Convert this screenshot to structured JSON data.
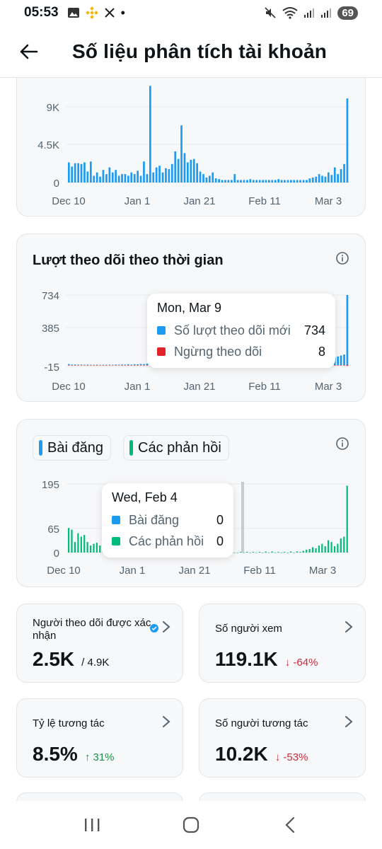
{
  "status_bar": {
    "time": "05:53",
    "battery": "69"
  },
  "header": {
    "title": "Số liệu phân tích tài khoản"
  },
  "impressions_chart": {
    "y_ticks": [
      "9K",
      "4.5K",
      "0"
    ],
    "x_ticks": [
      "Dec 10",
      "Jan 1",
      "Jan 21",
      "Feb 11",
      "Mar 3"
    ]
  },
  "followers_chart": {
    "title": "Lượt theo dõi theo thời gian",
    "y_ticks": [
      "734",
      "385",
      "-15"
    ],
    "x_ticks": [
      "Dec 10",
      "Jan 1",
      "Jan 21",
      "Feb 11",
      "Mar 3"
    ],
    "tooltip": {
      "date": "Mon, Mar 9",
      "rows": [
        {
          "label": "Số lượt theo dõi mới",
          "value": "734",
          "color": "#1d9bf0"
        },
        {
          "label": "Ngừng theo dõi",
          "value": "8",
          "color": "#e0242a"
        }
      ]
    }
  },
  "posts_chart": {
    "legend": [
      {
        "label": "Bài đăng",
        "color": "#1d9bf0"
      },
      {
        "label": "Các phản hồi",
        "color": "#00ba7c"
      }
    ],
    "y_ticks": [
      "195",
      "65",
      "0"
    ],
    "x_ticks": [
      "Dec 10",
      "Jan 1",
      "Jan 21",
      "Feb 11",
      "Mar 3"
    ],
    "tooltip": {
      "date": "Wed, Feb 4",
      "rows": [
        {
          "label": "Bài đăng",
          "value": "0",
          "color": "#1d9bf0"
        },
        {
          "label": "Các phản hồi",
          "value": "0",
          "color": "#00ba7c"
        }
      ]
    }
  },
  "stats": {
    "verified_followers": {
      "label": "Người theo dõi được xác nhận",
      "value": "2.5K",
      "sub": "/ 4.9K"
    },
    "viewers": {
      "label": "Số người xem",
      "value": "119.1K",
      "change": "↓ -64%"
    },
    "engagement_rate": {
      "label": "Tỷ lệ tương tác",
      "value": "8.5%",
      "change": "↑ 31%"
    },
    "engaged_users": {
      "label": "Số người tương tác",
      "value": "10.2K",
      "change": "↓ -53%"
    }
  },
  "chart_data": [
    {
      "type": "bar",
      "title": "",
      "x_ticks": [
        "Dec 10",
        "Jan 1",
        "Jan 21",
        "Feb 11",
        "Mar 3"
      ],
      "ylim": [
        0,
        11000
      ],
      "y_ticks": [
        0,
        4500,
        9000
      ],
      "values": [
        2400,
        1900,
        2300,
        2300,
        2200,
        2400,
        1300,
        2500,
        800,
        1200,
        700,
        1500,
        1000,
        1800,
        1200,
        1500,
        800,
        1000,
        1000,
        800,
        1200,
        1000,
        1400,
        800,
        2500,
        1000,
        11500,
        1200,
        1800,
        2000,
        1200,
        1700,
        1600,
        2200,
        3700,
        2800,
        6800,
        3500,
        2400,
        2700,
        2800,
        2300,
        1300,
        1000,
        600,
        800,
        1200,
        500,
        400,
        300,
        300,
        300,
        300,
        1000,
        300,
        300,
        300,
        300,
        400,
        300,
        300,
        300,
        300,
        300,
        300,
        300,
        300,
        400,
        300,
        300,
        300,
        300,
        300,
        300,
        300,
        300,
        300,
        500,
        600,
        700,
        1000,
        800,
        700,
        1200,
        900,
        1800,
        1000,
        1600,
        2200,
        10000
      ]
    },
    {
      "type": "bar",
      "title": "Lượt theo dõi theo thời gian",
      "x_ticks": [
        "Dec 10",
        "Jan 1",
        "Jan 21",
        "Feb 11",
        "Mar 3"
      ],
      "ylim": [
        -15,
        734
      ],
      "y_ticks": [
        -15,
        385,
        734
      ],
      "series": [
        {
          "name": "Số lượt theo dõi mới",
          "values": [
            10,
            5,
            6,
            4,
            5,
            3,
            4,
            3,
            3,
            4,
            2,
            3,
            3,
            4,
            3,
            5,
            4,
            6,
            5,
            8,
            5,
            9,
            8,
            12,
            10,
            14,
            9,
            12,
            15,
            10,
            12,
            18,
            15,
            22,
            18,
            30,
            20,
            25,
            15,
            18,
            12,
            10,
            8,
            6,
            5,
            6,
            4,
            5,
            3,
            4,
            3,
            3,
            4,
            3,
            3,
            3,
            3,
            4,
            3,
            3,
            3,
            4,
            3,
            3,
            3,
            3,
            4,
            3,
            3,
            3,
            4,
            4,
            5,
            6,
            8,
            10,
            12,
            15,
            20,
            28,
            35,
            45,
            55,
            60,
            70,
            80,
            90,
            100,
            110,
            734
          ]
        },
        {
          "name": "Ngừng theo dõi",
          "values": [
            2,
            1,
            1,
            1,
            1,
            1,
            1,
            1,
            1,
            1,
            1,
            1,
            1,
            1,
            1,
            1,
            1,
            1,
            1,
            1,
            1,
            1,
            1,
            1,
            1,
            1,
            1,
            1,
            1,
            1,
            1,
            1,
            1,
            1,
            1,
            1,
            1,
            1,
            1,
            1,
            1,
            1,
            1,
            1,
            1,
            1,
            1,
            1,
            1,
            1,
            1,
            1,
            1,
            1,
            1,
            1,
            1,
            1,
            1,
            1,
            1,
            1,
            1,
            1,
            1,
            1,
            1,
            1,
            1,
            1,
            1,
            1,
            1,
            1,
            1,
            1,
            1,
            1,
            1,
            1,
            1,
            1,
            2,
            2,
            3,
            3,
            4,
            4,
            5,
            8
          ]
        }
      ]
    },
    {
      "type": "bar",
      "title": "",
      "x_ticks": [
        "Dec 10",
        "Jan 1",
        "Jan 21",
        "Feb 11",
        "Mar 3"
      ],
      "ylim": [
        0,
        195
      ],
      "y_ticks": [
        0,
        65,
        195
      ],
      "series": [
        {
          "name": "Bài đăng",
          "values": [
            0,
            0,
            0,
            0,
            0,
            0,
            0,
            0,
            0,
            0,
            0,
            0,
            0,
            0,
            0,
            0,
            0,
            0,
            0,
            0,
            0,
            0,
            0,
            0,
            0,
            0,
            0,
            0,
            0,
            0,
            0,
            0,
            0,
            0,
            0,
            0,
            0,
            0,
            0,
            0,
            0,
            0,
            0,
            0,
            0,
            0,
            0,
            0,
            0,
            0,
            0,
            0,
            0,
            0,
            0,
            0,
            0,
            0,
            0,
            0,
            0,
            0,
            0,
            0,
            0,
            0,
            0,
            0,
            0,
            0,
            0,
            0,
            0,
            0,
            0,
            0,
            0,
            0,
            0,
            0,
            0,
            0,
            0,
            0,
            0,
            0,
            0,
            0,
            0,
            2
          ]
        },
        {
          "name": "Các phản hồi",
          "values": [
            70,
            65,
            30,
            55,
            45,
            50,
            30,
            20,
            25,
            28,
            20,
            15,
            12,
            10,
            20,
            15,
            22,
            10,
            12,
            8,
            10,
            6,
            8,
            10,
            6,
            8,
            6,
            7,
            5,
            6,
            5,
            4,
            6,
            5,
            4,
            5,
            3,
            4,
            3,
            2,
            3,
            2,
            3,
            2,
            0,
            0,
            0,
            0,
            0,
            0,
            0,
            0,
            0,
            0,
            0,
            2,
            0,
            2,
            0,
            2,
            0,
            2,
            0,
            3,
            0,
            3,
            0,
            2,
            0,
            2,
            0,
            3,
            0,
            3,
            2,
            5,
            8,
            10,
            15,
            12,
            20,
            25,
            18,
            35,
            30,
            18,
            25,
            40,
            45,
            190
          ]
        }
      ]
    }
  ]
}
